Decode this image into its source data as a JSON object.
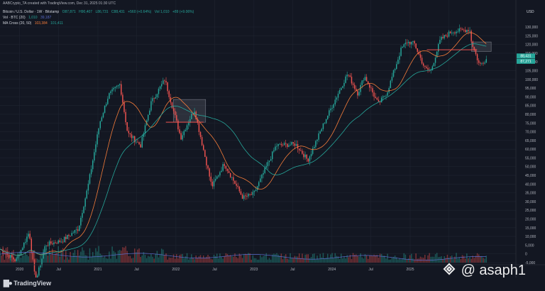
{
  "credit": "AABCrypto_TA created with TradingView.com, Dec 31, 2025 01:30 UTC",
  "header": {
    "symbol": "Bitcoin / U.S. Dollar · 1W · Bitstamp",
    "ohlc": [
      "O87,871",
      "H90,407",
      "L86,731",
      "C88,431",
      "+560 (+0.64%)",
      "Vol 1,010",
      "+89 (+9.06%)"
    ],
    "vol_label": "Vol · BTC (20)",
    "vol_values": [
      "1,010",
      "39,187"
    ],
    "ma_label": "MA Cross (20, 50)",
    "ma_values": [
      "103,384",
      "101,411"
    ]
  },
  "currency": "USD",
  "price_tags": [
    "88,431",
    "87,271"
  ],
  "footer": {
    "brand": "TradingView"
  },
  "watermark": "@ asaph1",
  "colors": {
    "bg": "#131722",
    "up": "#26a69a",
    "down": "#ef5350",
    "ma_fast": "#f57c3a",
    "ma_slow": "#26a69a",
    "vol_ma": "#5a6bcc",
    "box": "#787b86"
  },
  "chart_data": {
    "type": "candlestick",
    "interval": "1W",
    "yscale": "log",
    "yticks": [
      "130,000",
      "125,000",
      "120,000",
      "115,000",
      "110,000",
      "105,000",
      "100,000",
      "95,000",
      "90,000",
      "85,000",
      "80,000",
      "75,000",
      "70,000",
      "65,000",
      "60,000",
      "55,000",
      "50,000",
      "45,000",
      "40,000",
      "35,000",
      "30,000",
      "25,000",
      "20,000",
      "15,000",
      "10,000",
      "5,000",
      "0",
      "-5,000"
    ],
    "xticks": [
      "2020",
      "Jul",
      "2021",
      "Jul",
      "2022",
      "Jul",
      "2023",
      "Jul",
      "2024",
      "Jul",
      "2025",
      "Jul"
    ],
    "price_path": [
      [
        "2019-10-01",
        8300
      ],
      [
        "2019-12-15",
        7200
      ],
      [
        "2020-02-15",
        10300
      ],
      [
        "2020-03-15",
        5500
      ],
      [
        "2020-05-01",
        8800
      ],
      [
        "2020-07-15",
        9200
      ],
      [
        "2020-10-01",
        10700
      ],
      [
        "2020-11-15",
        18000
      ],
      [
        "2021-01-10",
        40000
      ],
      [
        "2021-02-20",
        56000
      ],
      [
        "2021-04-14",
        64000
      ],
      [
        "2021-05-20",
        35000
      ],
      [
        "2021-07-20",
        30000
      ],
      [
        "2021-09-07",
        51000
      ],
      [
        "2021-11-10",
        68000
      ],
      [
        "2022-01-24",
        33000
      ],
      [
        "2022-03-28",
        47000
      ],
      [
        "2022-06-18",
        18000
      ],
      [
        "2022-08-15",
        24000
      ],
      [
        "2022-11-10",
        15700
      ],
      [
        "2023-01-01",
        16500
      ],
      [
        "2023-04-15",
        30000
      ],
      [
        "2023-07-15",
        30500
      ],
      [
        "2023-09-10",
        25000
      ],
      [
        "2023-12-01",
        41000
      ],
      [
        "2024-03-14",
        73000
      ],
      [
        "2024-05-01",
        57000
      ],
      [
        "2024-06-01",
        71000
      ],
      [
        "2024-08-05",
        50000
      ],
      [
        "2024-09-15",
        58000
      ],
      [
        "2024-11-20",
        99000
      ],
      [
        "2024-12-17",
        108000
      ],
      [
        "2025-01-20",
        106000
      ],
      [
        "2025-03-10",
        78000
      ],
      [
        "2025-04-07",
        75000
      ],
      [
        "2025-05-22",
        111000
      ],
      [
        "2025-07-14",
        123000
      ],
      [
        "2025-08-14",
        124000
      ],
      [
        "2025-10-06",
        126000
      ],
      [
        "2025-10-15",
        108000
      ],
      [
        "2025-11-21",
        81000
      ],
      [
        "2025-12-15",
        86000
      ],
      [
        "2025-12-29",
        88431
      ]
    ],
    "annotations": {
      "zones": [
        {
          "from": "2021-12-20",
          "to": "2022-05-20",
          "low": 40000,
          "high": 53000
        },
        {
          "from": "2025-10-15",
          "to": "2026-01-15",
          "low": 96000,
          "high": 108000
        }
      ],
      "levels": [
        {
          "from": "2021-11-15",
          "to": "2022-05-10",
          "price": 40000
        },
        {
          "from": "2025-03-20",
          "to": "2025-11-10",
          "price": 98000
        }
      ]
    }
  }
}
